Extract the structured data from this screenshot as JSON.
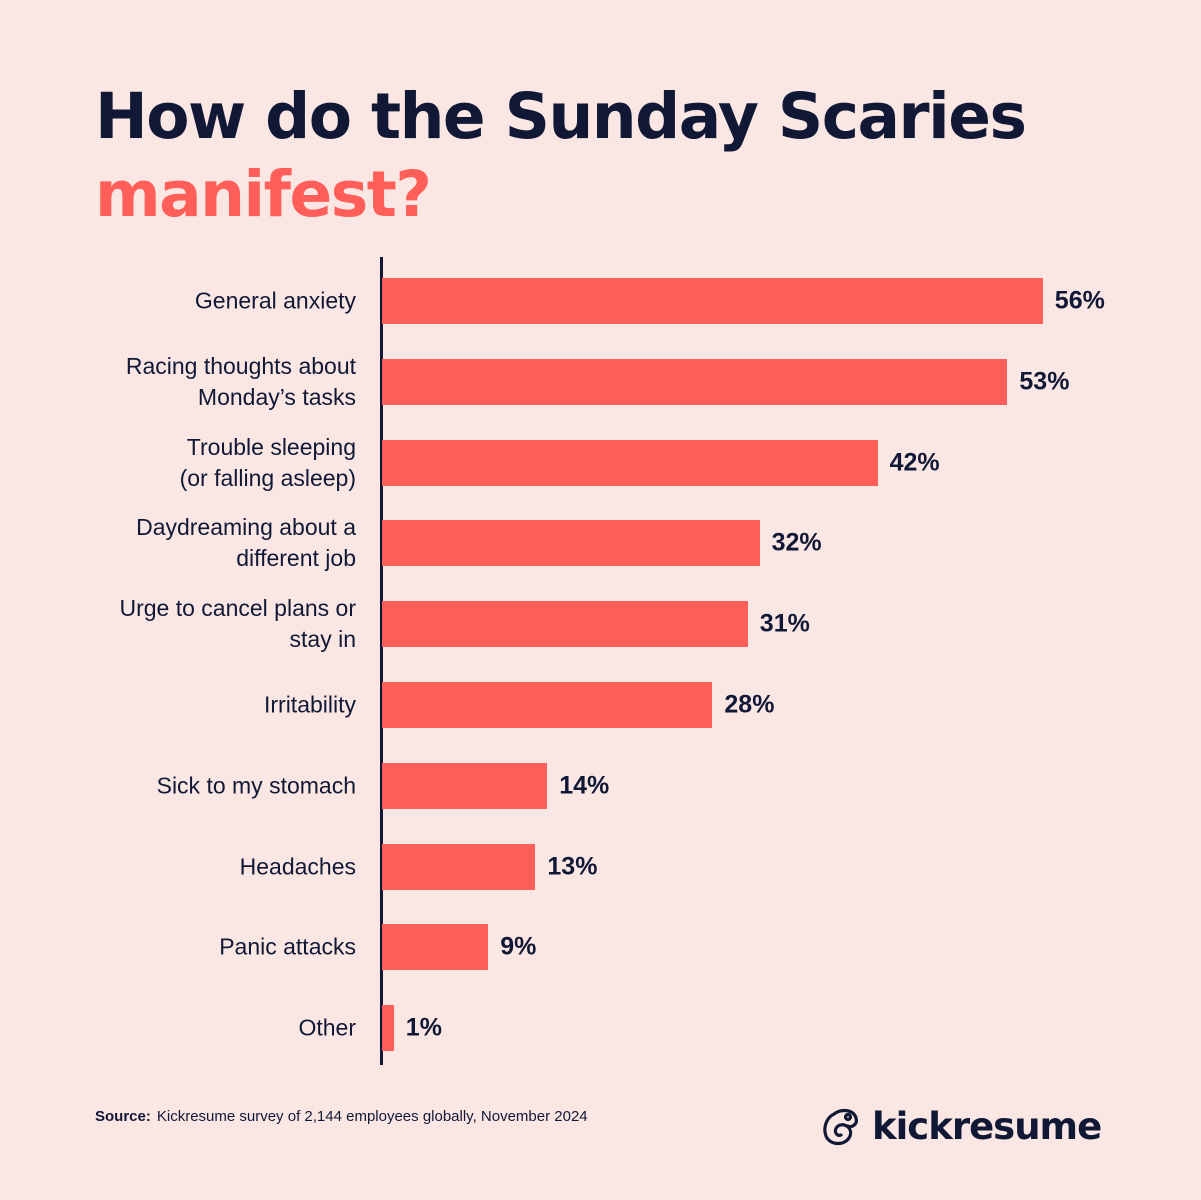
{
  "title": {
    "line1": "How do the Sunday Scaries",
    "line2": "manifest?"
  },
  "colors": {
    "background": "#fae7e4",
    "bar": "#ff5f58",
    "text": "#111836",
    "accent": "#ff5f58"
  },
  "chart_data": {
    "type": "bar",
    "orientation": "horizontal",
    "title": "How do the Sunday Scaries manifest?",
    "categories": [
      "General anxiety",
      "Racing thoughts about Monday's tasks",
      "Trouble sleeping (or falling asleep)",
      "Daydreaming about a different job",
      "Urge to cancel plans or stay in",
      "Irritability",
      "Sick to my stomach",
      "Headaches",
      "Panic attacks",
      "Other"
    ],
    "values": [
      56,
      53,
      42,
      32,
      31,
      28,
      14,
      13,
      9,
      1
    ],
    "unit": "%",
    "xlabel": "",
    "ylabel": "",
    "grid": false,
    "legend": null
  },
  "rows": [
    {
      "label": "General anxiety",
      "value": "56%"
    },
    {
      "label": "Racing thoughts about\nMonday’s tasks",
      "value": "53%"
    },
    {
      "label": "Trouble sleeping \n(or falling asleep)",
      "value": "42%"
    },
    {
      "label": "Daydreaming about a\ndifferent job",
      "value": "32%"
    },
    {
      "label": "Urge to cancel plans or\nstay in",
      "value": "31%"
    },
    {
      "label": "Irritability",
      "value": "28%"
    },
    {
      "label": "Sick to my stomach",
      "value": "14%"
    },
    {
      "label": "Headaches",
      "value": "13%"
    },
    {
      "label": "Panic attacks",
      "value": "9%"
    },
    {
      "label": "Other",
      "value": "1%"
    }
  ],
  "source": {
    "label": "Source:",
    "text": "Kickresume survey of 2,144 employees globally, November 2024"
  },
  "brand": {
    "name": "kickresume",
    "icon": "kickresume-chameleon-icon"
  }
}
